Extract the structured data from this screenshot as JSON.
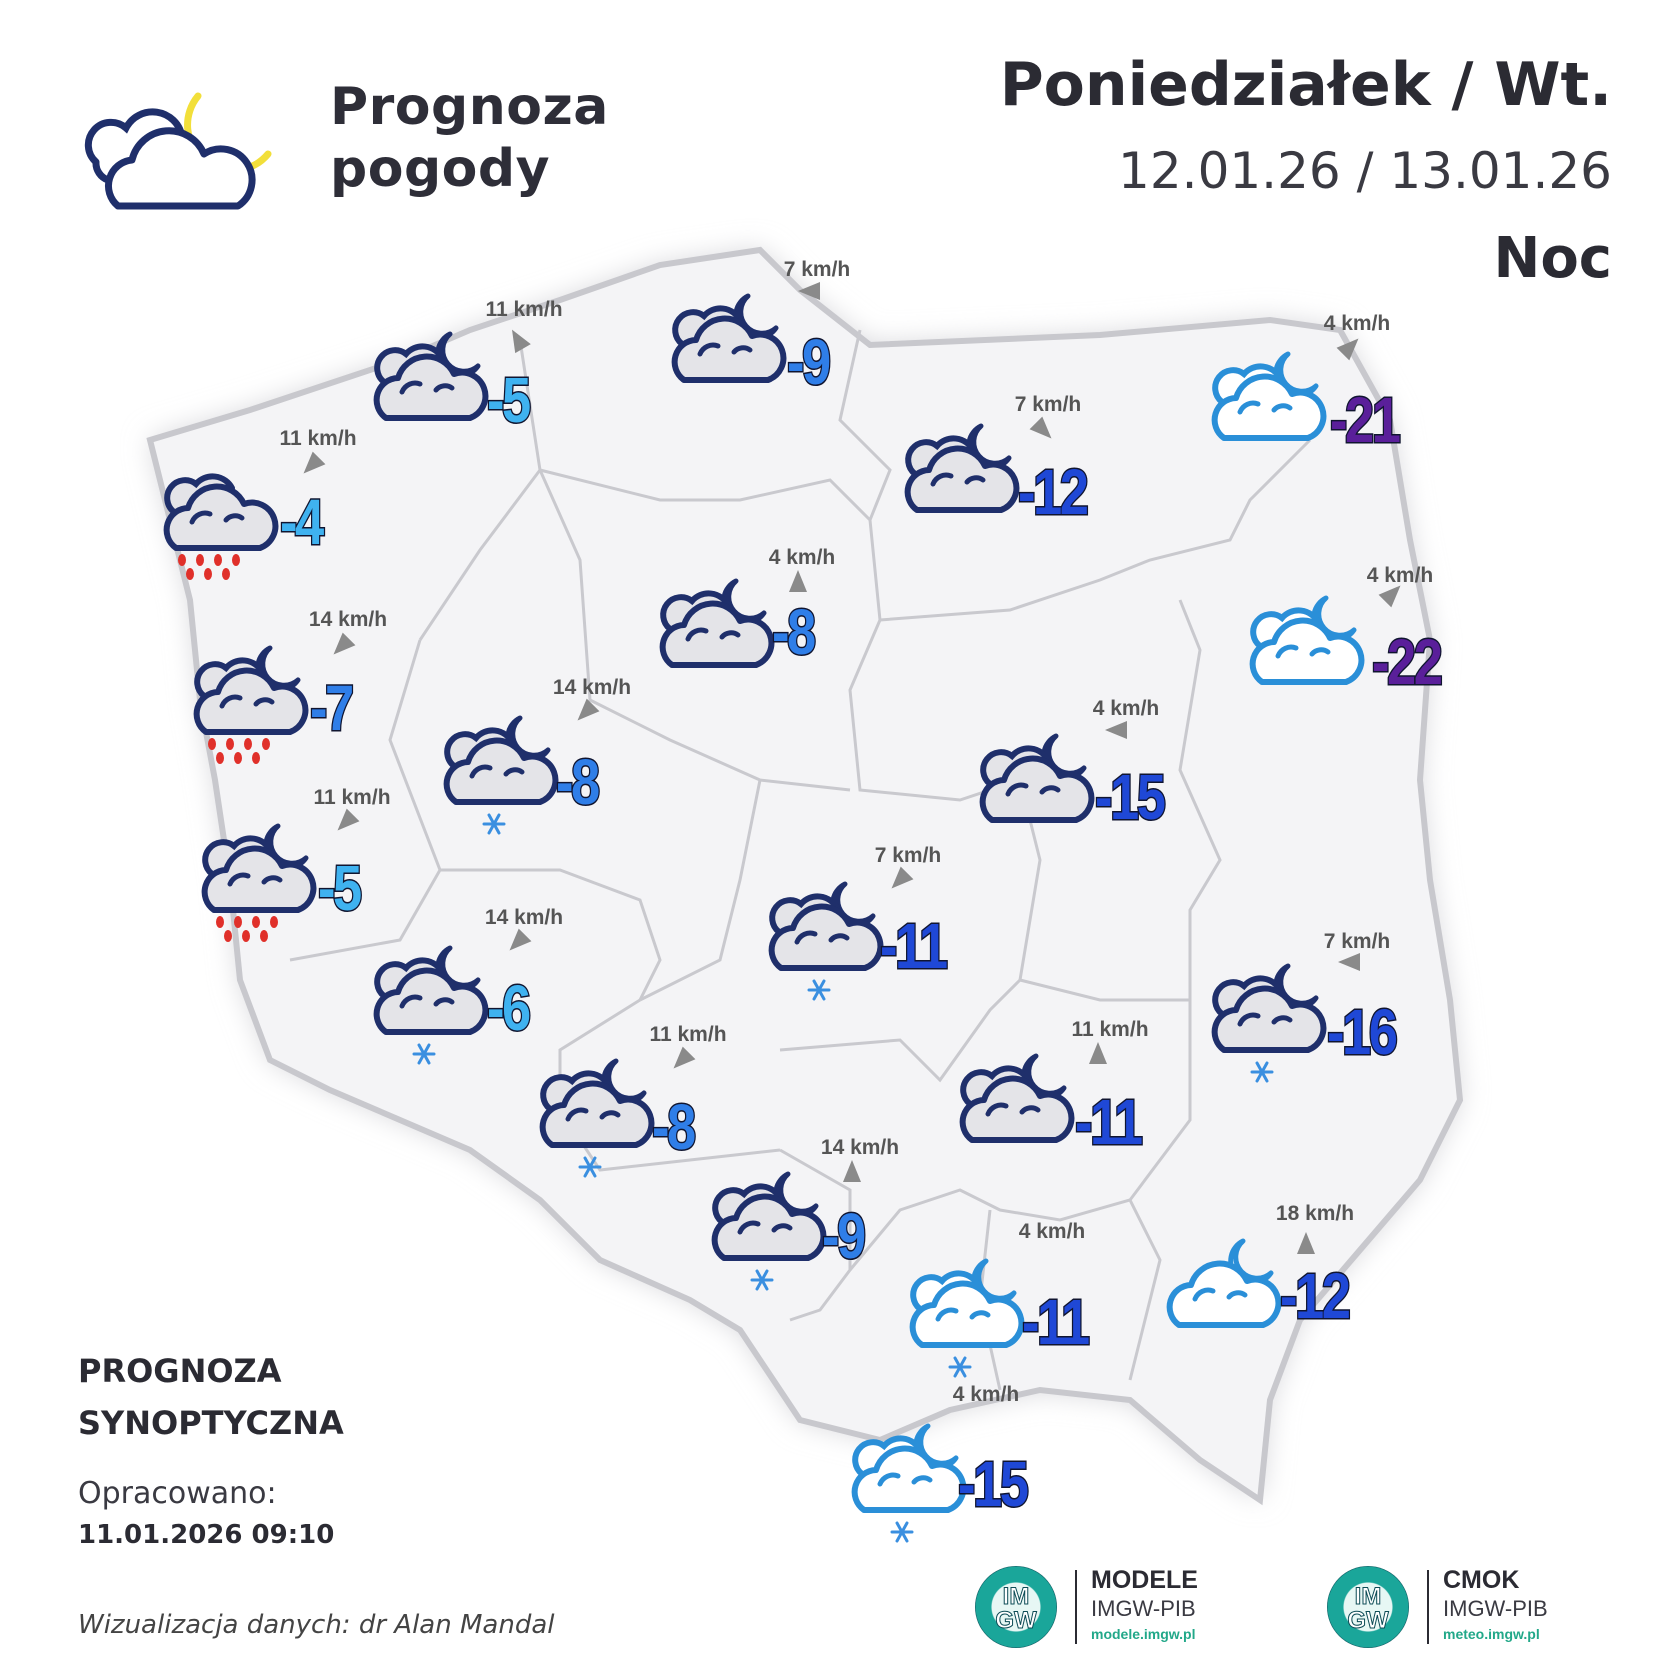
{
  "header": {
    "brand_line1": "Prognoza",
    "brand_line2": "pogody",
    "day": "Poniedziałek / Wt.",
    "dates": "12.01.26 / 13.01.26",
    "period": "Noc"
  },
  "colors": {
    "map_fill": "#f4f4f6",
    "map_border": "#cfcfd4",
    "temp_light": "#3fb2f0",
    "temp_mid": "#2f7ee8",
    "temp_dark": "#1f48d6",
    "temp_violet": "#5a1f9a",
    "wind_arrow": "#8a8a8a",
    "rain_drop": "#e0302a",
    "snowflake": "#3a8fe0",
    "moon": "#f4e04a"
  },
  "stations": [
    {
      "temp": "-5",
      "wind": "11 km/h",
      "icon": "cloudy-night",
      "wind_dir": "arrow-ne"
    },
    {
      "temp": "-9",
      "wind": "7 km/h",
      "icon": "cloudy-night",
      "wind_dir": "arrow-left"
    },
    {
      "temp": "-21",
      "wind": "4 km/h",
      "icon": "partly-cloudy-night",
      "wind_dir": "arrow-up-right"
    },
    {
      "temp": "-4",
      "wind": "11 km/h",
      "icon": "rain",
      "wind_dir": "arrow-down-left"
    },
    {
      "temp": "-12",
      "wind": "7 km/h",
      "icon": "cloudy-night",
      "wind_dir": "arrow-down-right"
    },
    {
      "temp": "-8",
      "wind": "4 km/h",
      "icon": "cloudy-night",
      "wind_dir": "arrow-up"
    },
    {
      "temp": "-22",
      "wind": "4 km/h",
      "icon": "partly-cloudy-night",
      "wind_dir": "arrow-up-right"
    },
    {
      "temp": "-7",
      "wind": "14 km/h",
      "icon": "rain-night",
      "wind_dir": "arrow-down-left"
    },
    {
      "temp": "-8",
      "wind": "14 km/h",
      "icon": "snow-night",
      "wind_dir": "arrow-down-left"
    },
    {
      "temp": "-15",
      "wind": "4 km/h",
      "icon": "cloudy-night",
      "wind_dir": "arrow-left"
    },
    {
      "temp": "-5",
      "wind": "11 km/h",
      "icon": "rain-night",
      "wind_dir": "arrow-down-left"
    },
    {
      "temp": "-11",
      "wind": "7 km/h",
      "icon": "snow-night",
      "wind_dir": "arrow-down-left"
    },
    {
      "temp": "-6",
      "wind": "14 km/h",
      "icon": "snow-night",
      "wind_dir": "arrow-down-left"
    },
    {
      "temp": "-16",
      "wind": "7 km/h",
      "icon": "snow-night",
      "wind_dir": "arrow-left"
    },
    {
      "temp": "-11",
      "wind": "11 km/h",
      "icon": "cloudy-night",
      "wind_dir": "arrow-up"
    },
    {
      "temp": "-8",
      "wind": "11 km/h",
      "icon": "snow-night",
      "wind_dir": "arrow-down-left"
    },
    {
      "temp": "-9",
      "wind": "14 km/h",
      "icon": "snow-night",
      "wind_dir": "arrow-up"
    },
    {
      "temp": "-11",
      "wind": "4 km/h",
      "icon": "partly-snow-night",
      "wind_dir": "none"
    },
    {
      "temp": "-12",
      "wind": "18 km/h",
      "icon": "clear-cloud-night",
      "wind_dir": "arrow-up"
    },
    {
      "temp": "-15",
      "wind": "4 km/h",
      "icon": "partly-snow-night",
      "wind_dir": "none"
    }
  ],
  "footer": {
    "title_line1": "PROGNOZA",
    "title_line2": "SYNOPTYCZNA",
    "prepared_label": "Opracowano:",
    "prepared_value": "11.01.2026 09:10",
    "credit": "Wizualizacja danych: dr Alan Mandal"
  },
  "partners": [
    {
      "logo_text_1": "IM",
      "logo_text_2": "GW",
      "name": "MODELE",
      "org": "IMGW-PIB",
      "url": "modele.imgw.pl"
    },
    {
      "logo_text_1": "IM",
      "logo_text_2": "GW",
      "name": "CMOK",
      "org": "IMGW-PIB",
      "url": "meteo.imgw.pl"
    }
  ]
}
